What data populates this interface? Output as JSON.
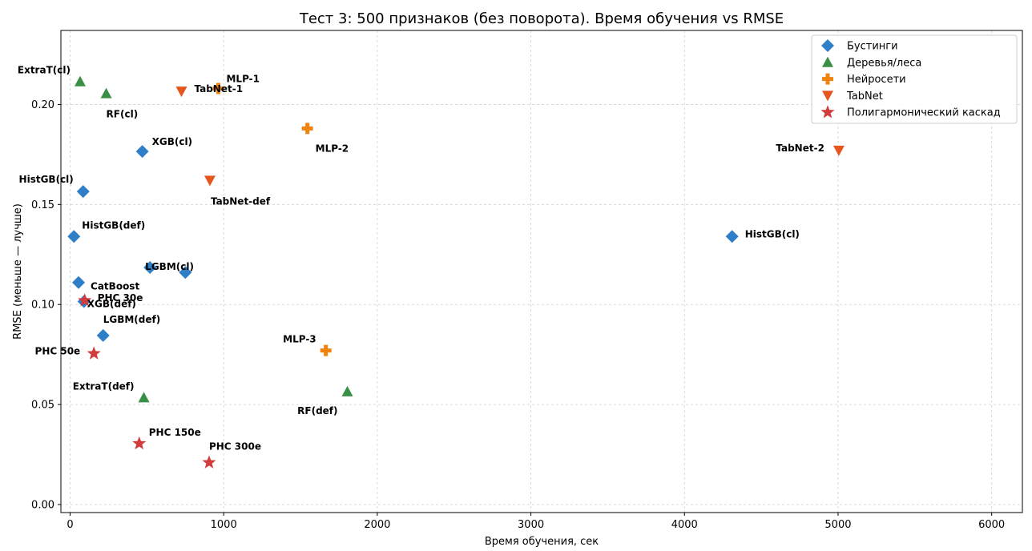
{
  "chart_data": {
    "type": "scatter",
    "title": "Тест 3: 500 признаков (без поворота). Время обучения vs RMSE",
    "xlabel": "Время обучения, сек",
    "ylabel": "RMSE (меньше — лучше)",
    "xlim": [
      -60,
      6200
    ],
    "ylim": [
      -0.004,
      0.237
    ],
    "xticks": [
      0,
      1000,
      2000,
      3000,
      4000,
      5000,
      6000
    ],
    "xtick_labels": [
      "0",
      "1000",
      "2000",
      "3000",
      "4000",
      "5000",
      "6000"
    ],
    "yticks": [
      0.0,
      0.05,
      0.1,
      0.15,
      0.2
    ],
    "ytick_labels": [
      "0.00",
      "0.05",
      "0.10",
      "0.15",
      "0.20"
    ],
    "grid": true,
    "legend_position": "top-right",
    "series": [
      {
        "name": "Бустинги",
        "marker": "diamond",
        "color": "#2f7ec8",
        "points": [
          {
            "x": 470,
            "y": 0.1765,
            "label": "XGB(cl)"
          },
          {
            "x": 85,
            "y": 0.1565,
            "label": "HistGB(cl)"
          },
          {
            "x": 25,
            "y": 0.134,
            "label": "HistGB(def)"
          },
          {
            "x": 520,
            "y": 0.1185,
            "label": "LGBM(cl)"
          },
          {
            "x": 750,
            "y": 0.116,
            "label": ""
          },
          {
            "x": 55,
            "y": 0.111,
            "label": "CatBoost"
          },
          {
            "x": 90,
            "y": 0.1015,
            "label": "XGB(def)"
          },
          {
            "x": 215,
            "y": 0.0845,
            "label": "LGBM(def)"
          },
          {
            "x": 4310,
            "y": 0.134,
            "label": "HistGB(cl)"
          }
        ]
      },
      {
        "name": "Деревья/леса",
        "marker": "triangle-up",
        "color": "#3a8f46",
        "points": [
          {
            "x": 65,
            "y": 0.2115,
            "label": "ExtraT(cl)"
          },
          {
            "x": 235,
            "y": 0.2055,
            "label": "RF(cl)"
          },
          {
            "x": 480,
            "y": 0.0535,
            "label": "ExtraT(def)"
          },
          {
            "x": 1805,
            "y": 0.0565,
            "label": "RF(def)"
          }
        ]
      },
      {
        "name": "Нейросети",
        "marker": "plus",
        "color": "#f0820e",
        "points": [
          {
            "x": 965,
            "y": 0.208,
            "label": "MLP-1"
          },
          {
            "x": 1545,
            "y": 0.188,
            "label": "MLP-2"
          },
          {
            "x": 1665,
            "y": 0.077,
            "label": "MLP-3"
          }
        ]
      },
      {
        "name": "TabNet",
        "marker": "triangle-down",
        "color": "#e4561e",
        "points": [
          {
            "x": 725,
            "y": 0.2065,
            "label": "TabNet-1"
          },
          {
            "x": 910,
            "y": 0.162,
            "label": "TabNet-def"
          },
          {
            "x": 5005,
            "y": 0.177,
            "label": "TabNet-2"
          }
        ]
      },
      {
        "name": "Полигармонический каскад",
        "marker": "star",
        "color": "#d23c3c",
        "points": [
          {
            "x": 95,
            "y": 0.102,
            "label": "PHC 30e"
          },
          {
            "x": 155,
            "y": 0.0755,
            "label": "PHC 50e"
          },
          {
            "x": 450,
            "y": 0.0305,
            "label": "PHC 150e"
          },
          {
            "x": 905,
            "y": 0.021,
            "label": "PHC 300e"
          }
        ]
      }
    ]
  }
}
